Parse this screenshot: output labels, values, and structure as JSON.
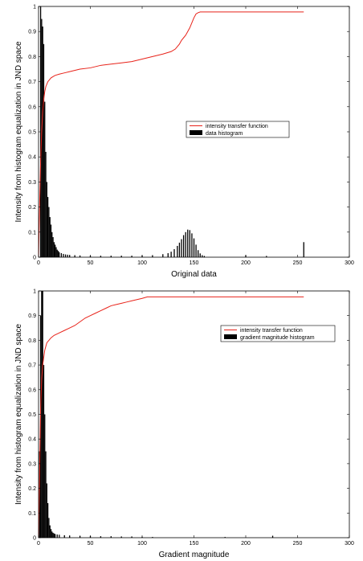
{
  "colors": {
    "transfer_line": "#e8231a",
    "histogram": "#000000",
    "axes": "#000000"
  },
  "chart_data": [
    {
      "type": "bar",
      "xlabel": "Original data",
      "ylabel": "Intensity from histogram equalization in JND space",
      "xlim": [
        0,
        300
      ],
      "ylim": [
        0,
        1
      ],
      "xticks": [
        "0",
        "50",
        "100",
        "150",
        "200",
        "250",
        "300"
      ],
      "yticks": [
        "0",
        "0.1",
        "0.2",
        "0.3",
        "0.4",
        "0.5",
        "0.6",
        "0.7",
        "0.8",
        "0.9",
        "1"
      ],
      "grid": false,
      "legend_position": "center-right",
      "series": [
        {
          "name": "intensity transfer function",
          "kind": "line",
          "x": [
            0,
            1,
            2,
            3,
            4,
            5,
            6,
            7,
            8,
            9,
            10,
            12,
            14,
            16,
            20,
            25,
            30,
            40,
            50,
            60,
            70,
            80,
            90,
            100,
            110,
            120,
            128,
            132,
            134,
            136,
            138,
            140,
            142,
            144,
            146,
            148,
            150,
            152,
            154,
            156,
            200,
            256
          ],
          "y": [
            0.0,
            0.2,
            0.38,
            0.5,
            0.58,
            0.63,
            0.66,
            0.68,
            0.69,
            0.7,
            0.705,
            0.715,
            0.72,
            0.725,
            0.73,
            0.735,
            0.74,
            0.75,
            0.755,
            0.765,
            0.77,
            0.775,
            0.78,
            0.79,
            0.8,
            0.81,
            0.82,
            0.83,
            0.84,
            0.85,
            0.865,
            0.875,
            0.885,
            0.9,
            0.915,
            0.935,
            0.955,
            0.97,
            0.975,
            0.978,
            0.978,
            0.978
          ]
        },
        {
          "name": "data histogram",
          "kind": "bar",
          "x": [
            2,
            3,
            4,
            5,
            6,
            7,
            8,
            9,
            10,
            11,
            12,
            13,
            14,
            15,
            16,
            17,
            18,
            19,
            20,
            22,
            24,
            26,
            28,
            30,
            35,
            40,
            50,
            60,
            70,
            80,
            90,
            100,
            110,
            120,
            125,
            128,
            131,
            134,
            136,
            138,
            140,
            142,
            144,
            146,
            148,
            150,
            152,
            154,
            156,
            158,
            160,
            200,
            220,
            256
          ],
          "y": [
            1.0,
            0.95,
            0.92,
            0.85,
            0.62,
            0.42,
            0.3,
            0.24,
            0.2,
            0.16,
            0.13,
            0.1,
            0.08,
            0.06,
            0.05,
            0.04,
            0.03,
            0.025,
            0.02,
            0.016,
            0.013,
            0.011,
            0.01,
            0.009,
            0.008,
            0.007,
            0.006,
            0.006,
            0.006,
            0.006,
            0.006,
            0.007,
            0.008,
            0.012,
            0.016,
            0.022,
            0.032,
            0.045,
            0.058,
            0.072,
            0.088,
            0.1,
            0.11,
            0.108,
            0.095,
            0.075,
            0.05,
            0.028,
            0.015,
            0.008,
            0.005,
            0.008,
            0.005,
            0.06
          ]
        }
      ]
    },
    {
      "type": "bar",
      "xlabel": "Gradient magnitude",
      "ylabel": "Intensity from histogram equalization in JND space",
      "xlim": [
        0,
        300
      ],
      "ylim": [
        0,
        1
      ],
      "xticks": [
        "0",
        "50",
        "100",
        "150",
        "200",
        "250",
        "300"
      ],
      "yticks": [
        "0",
        "0.1",
        "0.2",
        "0.3",
        "0.4",
        "0.5",
        "0.6",
        "0.7",
        "0.8",
        "0.9",
        "1"
      ],
      "grid": false,
      "legend_position": "top-right",
      "series": [
        {
          "name": "intensity transfer function",
          "kind": "line",
          "x": [
            0,
            1,
            2,
            3,
            4,
            5,
            6,
            8,
            10,
            12,
            15,
            20,
            25,
            30,
            35,
            40,
            45,
            50,
            55,
            60,
            65,
            70,
            75,
            80,
            85,
            90,
            95,
            100,
            105,
            256
          ],
          "y": [
            0.0,
            0.25,
            0.52,
            0.64,
            0.7,
            0.73,
            0.76,
            0.79,
            0.8,
            0.81,
            0.82,
            0.83,
            0.84,
            0.85,
            0.86,
            0.875,
            0.89,
            0.9,
            0.91,
            0.92,
            0.93,
            0.94,
            0.945,
            0.95,
            0.955,
            0.96,
            0.965,
            0.97,
            0.976,
            0.976
          ]
        },
        {
          "name": "gradient magnitude histogram",
          "kind": "bar",
          "x": [
            1,
            2,
            3,
            4,
            5,
            6,
            7,
            8,
            9,
            10,
            11,
            12,
            13,
            14,
            15,
            16,
            18,
            20,
            25,
            30,
            40,
            50,
            60,
            70,
            80,
            90,
            100,
            110,
            180,
            226
          ],
          "y": [
            0.35,
            0.9,
            1.0,
            1.0,
            0.7,
            0.5,
            0.35,
            0.22,
            0.14,
            0.08,
            0.05,
            0.035,
            0.025,
            0.02,
            0.017,
            0.015,
            0.013,
            0.012,
            0.01,
            0.009,
            0.008,
            0.007,
            0.006,
            0.006,
            0.005,
            0.005,
            0.004,
            0.003,
            0.003,
            0.008
          ]
        }
      ]
    }
  ]
}
